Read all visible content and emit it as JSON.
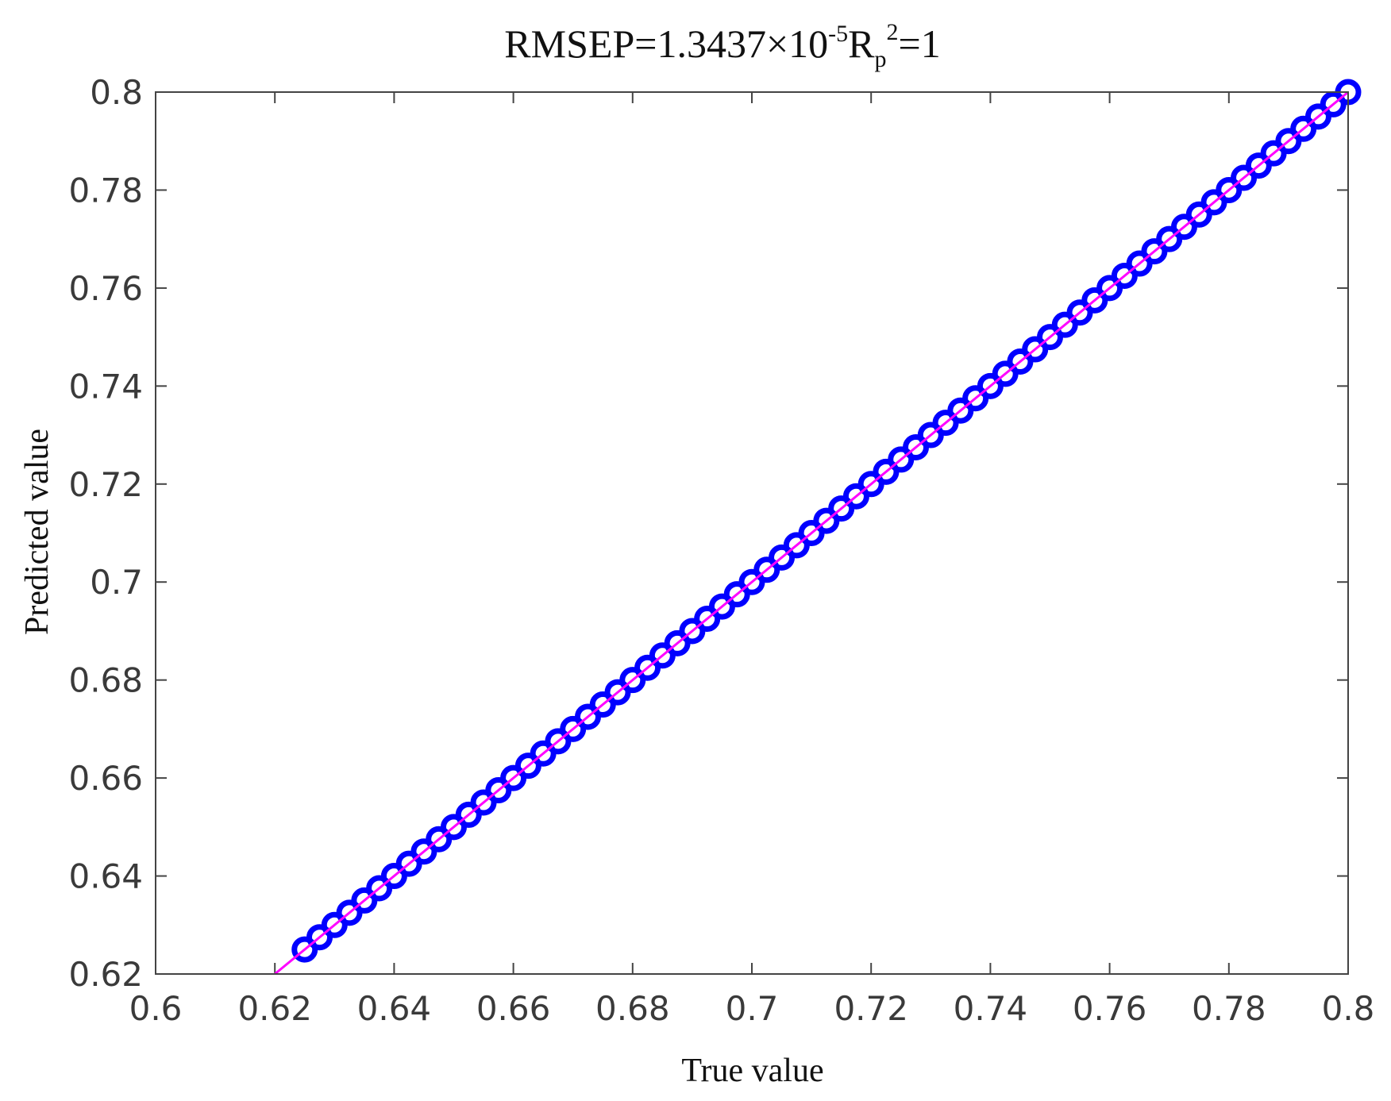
{
  "chart_data": {
    "type": "scatter",
    "title": [
      "RMSEP=1.3437×10",
      "-5",
      "R",
      "p",
      "2",
      "=1"
    ],
    "xlabel": "True value",
    "ylabel": "Predicted value",
    "color": "#0000ff",
    "x": [
      0.625,
      0.6275,
      0.63,
      0.6325,
      0.635,
      0.6375,
      0.64,
      0.6425,
      0.645,
      0.6475,
      0.65,
      0.6525,
      0.655,
      0.6575,
      0.66,
      0.6625,
      0.665,
      0.6675,
      0.67,
      0.6725,
      0.675,
      0.6775,
      0.68,
      0.6825,
      0.685,
      0.6875,
      0.69,
      0.6925,
      0.695,
      0.6975,
      0.7,
      0.7025,
      0.705,
      0.7075,
      0.71,
      0.7125,
      0.715,
      0.7175,
      0.72,
      0.7225,
      0.725,
      0.7275,
      0.73,
      0.7325,
      0.735,
      0.7375,
      0.74,
      0.7425,
      0.745,
      0.7475,
      0.75,
      0.7525,
      0.755,
      0.7575,
      0.76,
      0.7625,
      0.765,
      0.7675,
      0.77,
      0.7725,
      0.775,
      0.7775,
      0.78,
      0.7825,
      0.785,
      0.7875,
      0.79,
      0.7925,
      0.795,
      0.7975,
      0.8
    ],
    "values": [
      0.625,
      0.6275,
      0.63,
      0.6325,
      0.635,
      0.6375,
      0.64,
      0.6425,
      0.645,
      0.6475,
      0.65,
      0.6525,
      0.655,
      0.6575,
      0.66,
      0.6625,
      0.665,
      0.6675,
      0.67,
      0.6725,
      0.675,
      0.6775,
      0.68,
      0.6825,
      0.685,
      0.6875,
      0.69,
      0.6925,
      0.695,
      0.6975,
      0.7,
      0.7025,
      0.705,
      0.7075,
      0.71,
      0.7125,
      0.715,
      0.7175,
      0.72,
      0.7225,
      0.725,
      0.7275,
      0.73,
      0.7325,
      0.735,
      0.7375,
      0.74,
      0.7425,
      0.745,
      0.7475,
      0.75,
      0.7525,
      0.755,
      0.7575,
      0.76,
      0.7625,
      0.765,
      0.7675,
      0.77,
      0.7725,
      0.775,
      0.7775,
      0.78,
      0.7825,
      0.785,
      0.7875,
      0.79,
      0.7925,
      0.795,
      0.7975,
      0.8
    ],
    "fit_line": {
      "x": [
        0.62,
        0.8
      ],
      "values": [
        0.62,
        0.8
      ],
      "color": "#ff00ff"
    },
    "xlim": [
      0.6,
      0.8
    ],
    "xticks": [
      0.6,
      0.62,
      0.64,
      0.66,
      0.68,
      0.7,
      0.72,
      0.74,
      0.76,
      0.78,
      0.8
    ],
    "ylim": [
      0.62,
      0.8
    ],
    "yticks": [
      0.62,
      0.64,
      0.66,
      0.68,
      0.7,
      0.72,
      0.74,
      0.76,
      0.78,
      0.8
    ]
  }
}
